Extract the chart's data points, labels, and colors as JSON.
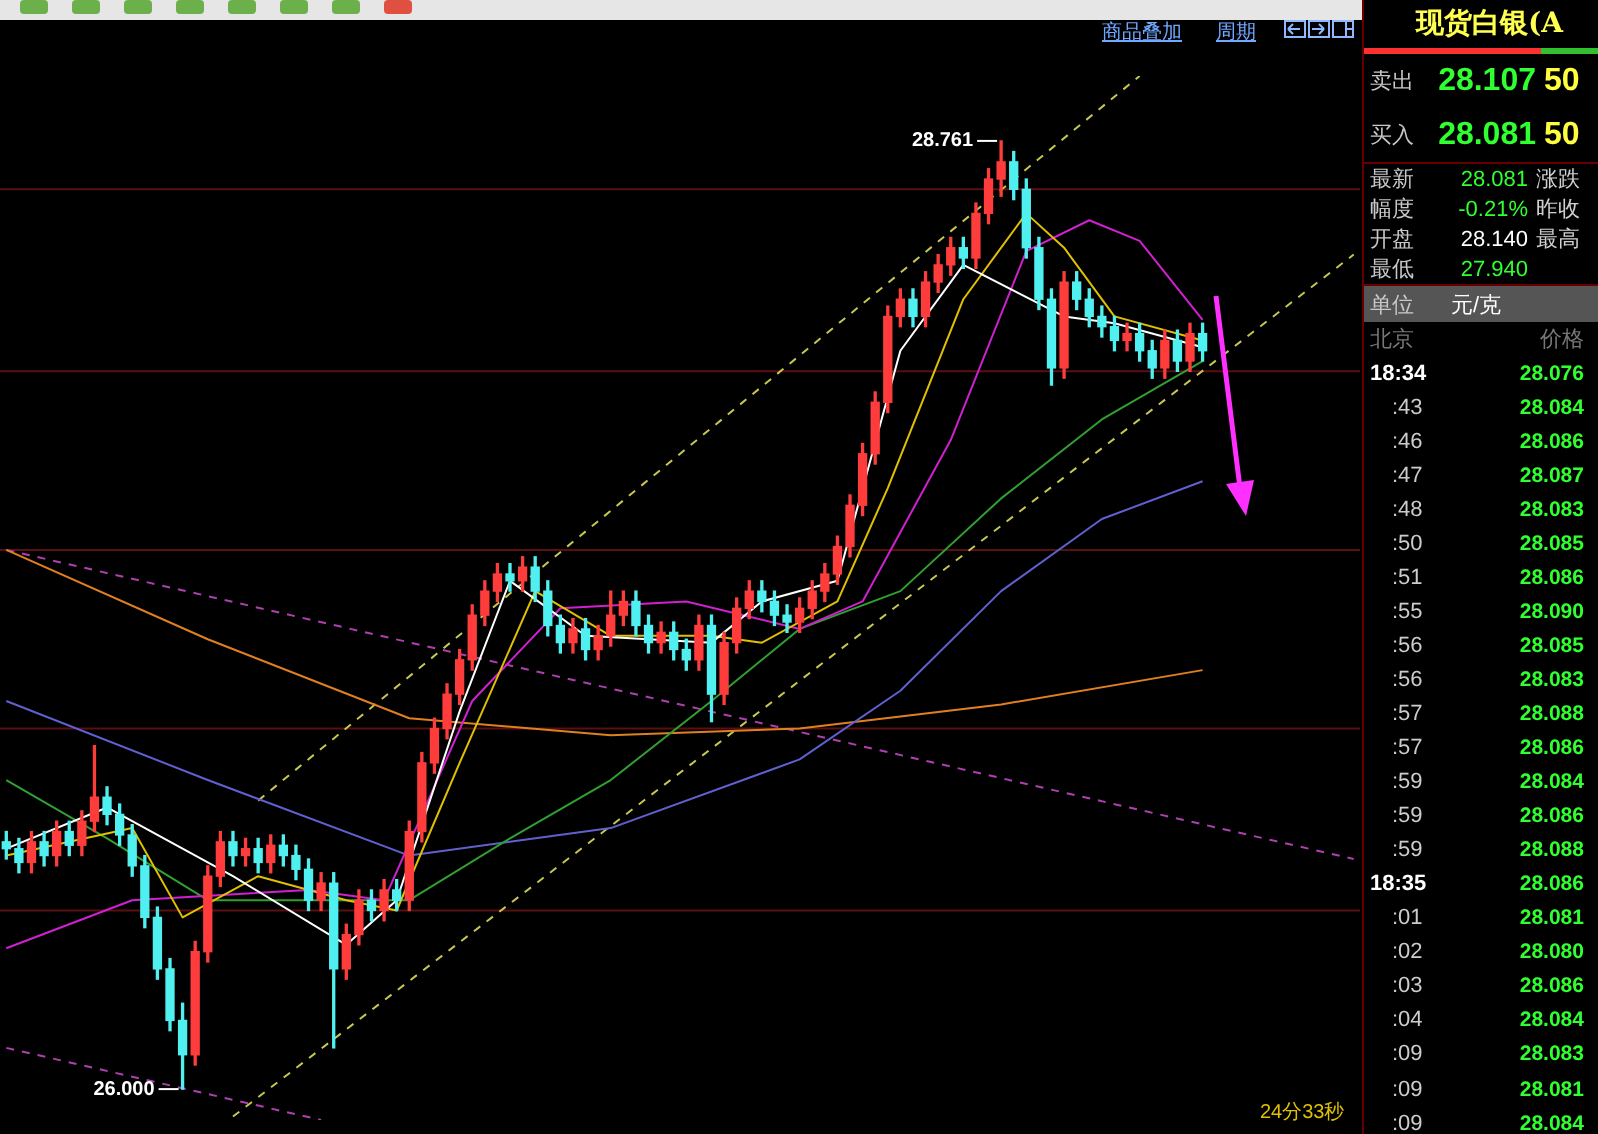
{
  "chart_data": [
    {
      "type": "candlestick",
      "categories": [
        null,
        null,
        null,
        null,
        null,
        null,
        null,
        null,
        null,
        null,
        null,
        null,
        null,
        null,
        null,
        null,
        null,
        null,
        null,
        null,
        null,
        null,
        null,
        null,
        null,
        null,
        null,
        null,
        null,
        null,
        null,
        null,
        null,
        null,
        null,
        null,
        null,
        null,
        null,
        null,
        null,
        null,
        null,
        null,
        null,
        null,
        null,
        null,
        null,
        null,
        null,
        null,
        null,
        null,
        null,
        null,
        null,
        null,
        null,
        null,
        null,
        null,
        null,
        null,
        null,
        null,
        null,
        null,
        null,
        null,
        null,
        null,
        null,
        null,
        null,
        null,
        null,
        null,
        null,
        null,
        null,
        null,
        null,
        null,
        null,
        null,
        null,
        null,
        null,
        null,
        null,
        null,
        null,
        null,
        null,
        null,
        null,
        null,
        null,
        null,
        null,
        null,
        null,
        null,
        null,
        null,
        null,
        null
      ],
      "ohlc": [
        [
          26.72,
          26.75,
          26.67,
          26.7
        ],
        [
          26.7,
          26.73,
          26.63,
          26.66
        ],
        [
          26.66,
          26.75,
          26.63,
          26.72
        ],
        [
          26.72,
          26.75,
          26.65,
          26.68
        ],
        [
          26.68,
          26.78,
          26.65,
          26.75
        ],
        [
          26.75,
          26.78,
          26.68,
          26.71
        ],
        [
          26.71,
          26.81,
          26.68,
          26.78
        ],
        [
          26.78,
          27.0,
          26.75,
          26.85
        ],
        [
          26.85,
          26.88,
          26.77,
          26.8
        ],
        [
          26.8,
          26.83,
          26.71,
          26.74
        ],
        [
          26.74,
          26.77,
          26.62,
          26.65
        ],
        [
          26.65,
          26.68,
          26.47,
          26.5
        ],
        [
          26.5,
          26.53,
          26.32,
          26.35
        ],
        [
          26.35,
          26.38,
          26.17,
          26.2
        ],
        [
          26.2,
          26.25,
          26.0,
          26.1
        ],
        [
          26.1,
          26.43,
          26.07,
          26.4
        ],
        [
          26.4,
          26.65,
          26.37,
          26.62
        ],
        [
          26.62,
          26.75,
          26.59,
          26.72
        ],
        [
          26.72,
          26.75,
          26.65,
          26.68
        ],
        [
          26.68,
          26.73,
          26.65,
          26.7
        ],
        [
          26.7,
          26.73,
          26.63,
          26.66
        ],
        [
          26.66,
          26.74,
          26.63,
          26.71
        ],
        [
          26.71,
          26.74,
          26.65,
          26.68
        ],
        [
          26.68,
          26.71,
          26.61,
          26.64
        ],
        [
          26.64,
          26.67,
          26.52,
          26.55
        ],
        [
          26.55,
          26.63,
          26.52,
          26.6
        ],
        [
          26.6,
          26.63,
          26.12,
          26.35
        ],
        [
          26.35,
          26.48,
          26.32,
          26.45
        ],
        [
          26.45,
          26.58,
          26.42,
          26.55
        ],
        [
          26.55,
          26.58,
          26.49,
          26.52
        ],
        [
          26.52,
          26.61,
          26.49,
          26.58
        ],
        [
          26.58,
          26.61,
          26.52,
          26.55
        ],
        [
          26.55,
          26.78,
          26.52,
          26.75
        ],
        [
          26.75,
          26.98,
          26.72,
          26.95
        ],
        [
          26.95,
          27.08,
          26.92,
          27.05
        ],
        [
          27.05,
          27.18,
          27.02,
          27.15
        ],
        [
          27.15,
          27.28,
          27.12,
          27.25
        ],
        [
          27.25,
          27.41,
          27.22,
          27.38
        ],
        [
          27.38,
          27.48,
          27.35,
          27.45
        ],
        [
          27.45,
          27.53,
          27.42,
          27.5
        ],
        [
          27.5,
          27.53,
          27.45,
          27.48
        ],
        [
          27.48,
          27.55,
          27.45,
          27.52
        ],
        [
          27.52,
          27.55,
          27.42,
          27.45
        ],
        [
          27.45,
          27.48,
          27.32,
          27.35
        ],
        [
          27.35,
          27.38,
          27.27,
          27.3
        ],
        [
          27.3,
          27.37,
          27.27,
          27.34
        ],
        [
          27.34,
          27.37,
          27.25,
          27.28
        ],
        [
          27.28,
          27.35,
          27.25,
          27.32
        ],
        [
          27.32,
          27.45,
          27.29,
          27.38
        ],
        [
          27.38,
          27.45,
          27.35,
          27.42
        ],
        [
          27.42,
          27.45,
          27.32,
          27.35
        ],
        [
          27.35,
          27.38,
          27.27,
          27.3
        ],
        [
          27.3,
          27.36,
          27.27,
          27.33
        ],
        [
          27.33,
          27.36,
          27.25,
          27.28
        ],
        [
          27.28,
          27.31,
          27.22,
          27.25
        ],
        [
          27.25,
          27.38,
          27.22,
          27.35
        ],
        [
          27.35,
          27.38,
          27.07,
          27.15
        ],
        [
          27.15,
          27.33,
          27.12,
          27.3
        ],
        [
          27.3,
          27.43,
          27.27,
          27.4
        ],
        [
          27.4,
          27.48,
          27.37,
          27.45
        ],
        [
          27.45,
          27.48,
          27.39,
          27.42
        ],
        [
          27.42,
          27.45,
          27.35,
          27.38
        ],
        [
          27.38,
          27.41,
          27.33,
          27.36
        ],
        [
          27.36,
          27.43,
          27.33,
          27.4
        ],
        [
          27.4,
          27.48,
          27.37,
          27.45
        ],
        [
          27.45,
          27.53,
          27.42,
          27.5
        ],
        [
          27.5,
          27.61,
          27.47,
          27.58
        ],
        [
          27.58,
          27.73,
          27.55,
          27.7
        ],
        [
          27.7,
          27.88,
          27.67,
          27.85
        ],
        [
          27.85,
          28.03,
          27.82,
          28.0
        ],
        [
          28.0,
          28.28,
          27.97,
          28.25
        ],
        [
          28.25,
          28.33,
          28.22,
          28.3
        ],
        [
          28.3,
          28.33,
          28.22,
          28.25
        ],
        [
          28.25,
          28.38,
          28.22,
          28.35
        ],
        [
          28.35,
          28.43,
          28.32,
          28.4
        ],
        [
          28.4,
          28.48,
          28.37,
          28.45
        ],
        [
          28.45,
          28.48,
          28.39,
          28.42
        ],
        [
          28.42,
          28.58,
          28.39,
          28.55
        ],
        [
          28.55,
          28.68,
          28.52,
          28.65
        ],
        [
          28.65,
          28.761,
          28.6,
          28.7
        ],
        [
          28.7,
          28.73,
          28.59,
          28.62
        ],
        [
          28.62,
          28.65,
          28.42,
          28.45
        ],
        [
          28.45,
          28.48,
          28.27,
          28.3
        ],
        [
          28.3,
          28.33,
          28.05,
          28.1
        ],
        [
          28.1,
          28.38,
          28.07,
          28.35
        ],
        [
          28.35,
          28.38,
          28.27,
          28.3
        ],
        [
          28.3,
          28.33,
          28.22,
          28.25
        ],
        [
          28.25,
          28.28,
          28.19,
          28.22
        ],
        [
          28.22,
          28.25,
          28.15,
          28.18
        ],
        [
          28.18,
          28.23,
          28.15,
          28.2
        ],
        [
          28.2,
          28.23,
          28.12,
          28.15
        ],
        [
          28.15,
          28.18,
          28.07,
          28.1
        ],
        [
          28.1,
          28.21,
          28.07,
          28.18
        ],
        [
          28.18,
          28.21,
          28.09,
          28.12
        ],
        [
          28.12,
          28.23,
          28.09,
          28.2
        ],
        [
          28.2,
          28.23,
          28.12,
          28.15
        ],
        null,
        null,
        null,
        null,
        null,
        null,
        null,
        null,
        null,
        null,
        null,
        null
      ],
      "series": [
        {
          "type": "line",
          "color": "#ffffff",
          "values": [
            26.7,
            null,
            null,
            null,
            null,
            null,
            null,
            null,
            26.82,
            null,
            null,
            null,
            null,
            null,
            null,
            null,
            null,
            null,
            26.62,
            null,
            null,
            null,
            null,
            null,
            null,
            null,
            null,
            26.42,
            null,
            null,
            null,
            26.55,
            null,
            null,
            null,
            null,
            27.1,
            null,
            null,
            null,
            27.48,
            null,
            null,
            null,
            null,
            null,
            27.32,
            null,
            null,
            null,
            null,
            null,
            null,
            null,
            null,
            null,
            27.3,
            null,
            null,
            null,
            27.42,
            null,
            null,
            null,
            null,
            null,
            27.48,
            null,
            null,
            null,
            null,
            28.15,
            null,
            null,
            null,
            null,
            28.4,
            null,
            null,
            null,
            null,
            null,
            null,
            null,
            28.25,
            null,
            null,
            null,
            28.23,
            null,
            null,
            null,
            null,
            null,
            null,
            28.16,
            null,
            null,
            null,
            null,
            null,
            null,
            null,
            null,
            null,
            null,
            null,
            null
          ]
        },
        {
          "type": "line",
          "color": "#e0c000",
          "values": [
            26.68,
            null,
            null,
            null,
            null,
            null,
            null,
            null,
            null,
            null,
            26.76,
            null,
            null,
            null,
            26.5,
            null,
            null,
            null,
            null,
            null,
            26.62,
            null,
            null,
            null,
            null,
            null,
            null,
            26.55,
            null,
            null,
            null,
            26.52,
            null,
            null,
            null,
            null,
            26.95,
            null,
            null,
            null,
            null,
            null,
            27.45,
            null,
            null,
            null,
            null,
            null,
            27.32,
            null,
            null,
            null,
            null,
            null,
            null,
            null,
            27.32,
            null,
            null,
            null,
            27.3,
            null,
            null,
            null,
            null,
            null,
            27.42,
            null,
            null,
            null,
            27.75,
            null,
            null,
            null,
            null,
            null,
            28.3,
            null,
            null,
            null,
            null,
            28.55,
            null,
            null,
            28.45,
            null,
            null,
            null,
            28.25,
            null,
            null,
            null,
            null,
            null,
            null,
            28.18,
            null,
            null,
            null,
            null,
            null,
            null,
            null,
            null,
            null,
            null,
            null,
            null
          ]
        },
        {
          "type": "line",
          "color": "#d020d0",
          "values": [
            26.41,
            null,
            null,
            null,
            null,
            null,
            null,
            null,
            null,
            null,
            26.55,
            null,
            null,
            null,
            null,
            null,
            null,
            null,
            null,
            null,
            null,
            null,
            null,
            null,
            26.58,
            null,
            null,
            null,
            null,
            null,
            26.55,
            null,
            null,
            null,
            null,
            null,
            null,
            27.13,
            null,
            null,
            null,
            null,
            null,
            null,
            27.4,
            null,
            null,
            null,
            null,
            null,
            null,
            null,
            null,
            null,
            27.42,
            null,
            null,
            null,
            null,
            null,
            null,
            null,
            null,
            27.34,
            null,
            null,
            null,
            null,
            27.42,
            null,
            null,
            null,
            null,
            null,
            null,
            27.89,
            null,
            null,
            null,
            null,
            null,
            28.44,
            null,
            null,
            null,
            null,
            28.53,
            null,
            null,
            null,
            28.47,
            null,
            null,
            null,
            null,
            28.24,
            null,
            null,
            null,
            null,
            null,
            null,
            null,
            null,
            null,
            null,
            null,
            null
          ]
        },
        {
          "type": "line",
          "color": "#30a030",
          "values": [
            26.9,
            null,
            null,
            null,
            null,
            null,
            null,
            null,
            26.73,
            null,
            null,
            null,
            null,
            null,
            null,
            null,
            26.55,
            null,
            null,
            null,
            null,
            null,
            null,
            null,
            null,
            null,
            null,
            null,
            null,
            null,
            null,
            null,
            26.55,
            null,
            null,
            null,
            null,
            null,
            null,
            null,
            26.73,
            null,
            null,
            null,
            null,
            null,
            null,
            null,
            26.9,
            null,
            null,
            null,
            null,
            null,
            null,
            null,
            27.13,
            null,
            null,
            null,
            null,
            null,
            null,
            27.34,
            null,
            null,
            null,
            null,
            null,
            null,
            null,
            27.45,
            null,
            null,
            null,
            null,
            null,
            null,
            null,
            27.72,
            null,
            null,
            null,
            null,
            null,
            null,
            null,
            27.95,
            null,
            null,
            null,
            null,
            null,
            null,
            null,
            28.12,
            null,
            null,
            null,
            null,
            null,
            null,
            null,
            null,
            null,
            null,
            null,
            null
          ]
        },
        {
          "type": "line",
          "color": "#6060d0",
          "values": [
            27.13,
            null,
            null,
            null,
            null,
            null,
            null,
            null,
            null,
            null,
            null,
            null,
            null,
            null,
            null,
            null,
            26.9,
            null,
            null,
            null,
            null,
            null,
            null,
            null,
            null,
            null,
            null,
            null,
            null,
            null,
            null,
            null,
            26.68,
            null,
            null,
            null,
            null,
            null,
            null,
            null,
            null,
            null,
            null,
            null,
            null,
            null,
            null,
            null,
            26.76,
            null,
            null,
            null,
            null,
            null,
            null,
            null,
            null,
            null,
            null,
            null,
            null,
            null,
            null,
            26.96,
            null,
            null,
            null,
            null,
            null,
            null,
            null,
            27.16,
            null,
            null,
            null,
            null,
            null,
            null,
            null,
            27.45,
            null,
            null,
            null,
            null,
            null,
            null,
            null,
            27.66,
            null,
            null,
            null,
            null,
            null,
            null,
            null,
            27.77,
            null,
            null,
            null,
            null,
            null,
            null,
            null,
            null,
            null,
            null,
            null,
            null
          ]
        },
        {
          "type": "line",
          "color": "#e08020",
          "values": [
            27.57,
            null,
            null,
            null,
            null,
            null,
            null,
            null,
            null,
            null,
            null,
            null,
            null,
            null,
            null,
            null,
            27.31,
            null,
            null,
            null,
            null,
            null,
            null,
            null,
            null,
            null,
            null,
            null,
            null,
            null,
            null,
            null,
            27.08,
            null,
            null,
            null,
            null,
            null,
            null,
            null,
            null,
            null,
            null,
            null,
            null,
            null,
            null,
            null,
            27.03,
            null,
            null,
            null,
            null,
            null,
            null,
            null,
            null,
            null,
            null,
            null,
            null,
            null,
            null,
            27.05,
            null,
            null,
            null,
            null,
            null,
            null,
            null,
            null,
            null,
            null,
            null,
            null,
            null,
            null,
            null,
            27.12,
            null,
            null,
            null,
            null,
            null,
            null,
            null,
            null,
            null,
            null,
            null,
            null,
            null,
            null,
            null,
            27.22,
            null,
            null,
            null,
            null,
            null,
            null,
            null,
            null,
            null,
            null,
            null,
            null
          ]
        },
        {
          "type": "line",
          "color": "#c8c850",
          "line_style": "dashed",
          "values": [
            null,
            null,
            null,
            null,
            null,
            null,
            null,
            null,
            null,
            null,
            null,
            null,
            null,
            null,
            null,
            null,
            null,
            null,
            null,
            null,
            26.84,
            null,
            null,
            null,
            null,
            null,
            null,
            null,
            null,
            null,
            null,
            null,
            null,
            null,
            null,
            null,
            null,
            null,
            null,
            null,
            null,
            null,
            null,
            null,
            null,
            null,
            null,
            null,
            null,
            null,
            null,
            null,
            null,
            null,
            null,
            null,
            null,
            null,
            null,
            null,
            null,
            null,
            null,
            null,
            null,
            null,
            null,
            null,
            null,
            null,
            null,
            null,
            null,
            null,
            null,
            null,
            null,
            null,
            null,
            null,
            null,
            null,
            null,
            null,
            null,
            null,
            null,
            null,
            null,
            null,
            28.95,
            null,
            null,
            null,
            null,
            null,
            null,
            null,
            null,
            null,
            null,
            null,
            null,
            null,
            null,
            null,
            null,
            null
          ]
        },
        {
          "type": "line",
          "color": "#c8c850",
          "line_style": "dashed",
          "values": [
            null,
            null,
            null,
            null,
            null,
            null,
            null,
            null,
            null,
            null,
            null,
            null,
            null,
            null,
            null,
            null,
            null,
            null,
            25.92,
            null,
            null,
            null,
            null,
            null,
            null,
            null,
            null,
            null,
            null,
            null,
            null,
            null,
            null,
            null,
            null,
            null,
            null,
            null,
            null,
            null,
            null,
            null,
            null,
            null,
            null,
            null,
            null,
            null,
            null,
            null,
            null,
            null,
            null,
            null,
            null,
            null,
            null,
            null,
            null,
            null,
            null,
            null,
            null,
            null,
            null,
            null,
            null,
            null,
            null,
            null,
            null,
            null,
            null,
            null,
            null,
            null,
            null,
            null,
            null,
            null,
            null,
            null,
            null,
            null,
            null,
            null,
            null,
            null,
            null,
            null,
            null,
            null,
            null,
            null,
            null,
            null,
            null,
            null,
            null,
            null,
            null,
            null,
            null,
            null,
            null,
            null,
            null,
            28.43
          ]
        },
        {
          "type": "line",
          "color": "#b040b0",
          "line_style": "dashed",
          "values": [
            27.57,
            null,
            null,
            null,
            null,
            null,
            null,
            null,
            null,
            null,
            null,
            null,
            null,
            null,
            null,
            null,
            null,
            null,
            null,
            null,
            null,
            null,
            null,
            null,
            null,
            null,
            null,
            null,
            null,
            null,
            null,
            null,
            null,
            null,
            null,
            null,
            null,
            null,
            null,
            null,
            null,
            null,
            null,
            null,
            null,
            null,
            null,
            null,
            null,
            null,
            null,
            null,
            null,
            null,
            null,
            null,
            null,
            null,
            null,
            null,
            null,
            null,
            null,
            null,
            null,
            null,
            null,
            null,
            null,
            null,
            null,
            null,
            null,
            null,
            null,
            null,
            null,
            null,
            null,
            null,
            null,
            null,
            null,
            null,
            null,
            null,
            null,
            null,
            null,
            null,
            null,
            null,
            null,
            null,
            null,
            null,
            null,
            null,
            null,
            null,
            null,
            null,
            null,
            null,
            null,
            null,
            null,
            26.67
          ]
        },
        {
          "type": "line",
          "color": "#b040b0",
          "line_style": "dashed",
          "values": [
            26.12,
            null,
            null,
            null,
            null,
            null,
            null,
            null,
            null,
            null,
            null,
            null,
            null,
            null,
            null,
            null,
            null,
            null,
            null,
            null,
            null,
            null,
            null,
            null,
            null,
            25.91,
            null,
            null,
            null,
            null,
            null,
            null,
            null,
            null,
            null,
            null,
            null,
            null,
            null,
            null,
            null,
            null,
            null,
            null,
            null,
            null,
            null,
            null,
            null,
            null,
            null,
            null,
            null,
            null,
            null,
            null,
            null,
            null,
            null,
            null,
            null,
            null,
            null,
            null,
            null,
            null,
            null,
            null,
            null,
            null,
            null,
            null,
            null,
            null,
            null,
            null,
            null,
            null,
            null,
            null,
            null,
            null,
            null,
            null,
            null,
            null,
            null,
            null,
            null,
            null,
            null,
            null,
            null,
            null,
            null,
            null,
            null,
            null,
            null,
            null,
            null,
            null,
            null,
            null,
            null,
            null,
            null,
            null
          ]
        }
      ],
      "tick_labels": false,
      "ref_lines": [
        {
          "axis": "y",
          "value": 28.62,
          "color": "#5a1010"
        },
        {
          "axis": "y",
          "value": 28.09,
          "color": "#5a1010"
        },
        {
          "axis": "y",
          "value": 27.57,
          "color": "#5a1010"
        },
        {
          "axis": "y",
          "value": 27.05,
          "color": "#5a1010"
        },
        {
          "axis": "y",
          "value": 26.52,
          "color": "#5a1010"
        }
      ],
      "annotations": [
        "商品叠加",
        "周期",
        "24分33秒",
        "28.761",
        "26.000"
      ]
    },
    {
      "type": "other",
      "title": "现货白银(A",
      "xlabel": "北京",
      "ylabel": "价格",
      "value_labels": [
        "28.076",
        "28.084",
        "28.086",
        "28.087",
        "28.083",
        "28.085",
        "28.086",
        "28.090",
        "28.085",
        "28.083",
        "28.088",
        "28.086",
        "28.084",
        "28.086",
        "28.088",
        "28.086",
        "28.081",
        "28.080",
        "28.086",
        "28.084",
        "28.083",
        "28.081",
        "28.084"
      ],
      "annotations": [
        "卖出",
        "28.107",
        "50",
        "买入",
        "28.081",
        "50",
        "最新",
        "28.081",
        "涨跌",
        "幅度",
        "-0.21%",
        "昨收",
        "开盘",
        "28.140",
        "最高",
        "最低",
        "27.940",
        "单位",
        "元/克"
      ],
      "categories": [
        "18:34",
        ":43",
        ":46",
        ":47",
        ":48",
        ":50",
        ":51",
        ":55",
        ":56",
        ":56",
        ":57",
        ":57",
        ":59",
        ":59",
        ":59",
        "18:35",
        ":01",
        ":02",
        ":03",
        ":04",
        ":09",
        ":09",
        ":09"
      ]
    }
  ]
}
